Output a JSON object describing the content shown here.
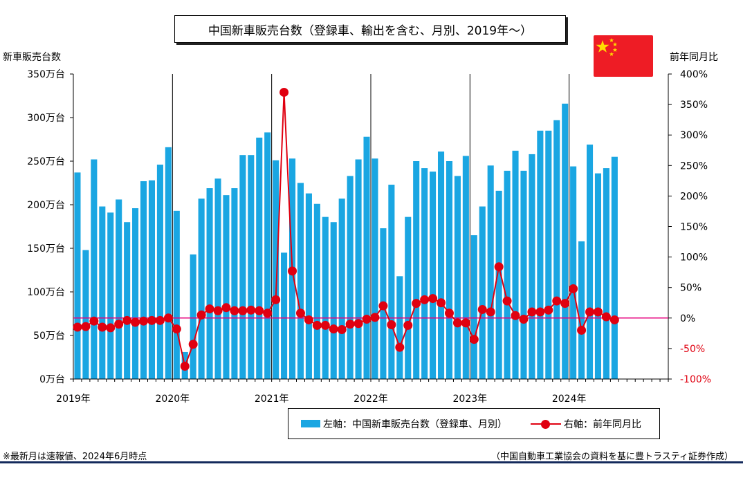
{
  "title": "中国新車販売台数（登録車、輸出を含む、月別、2019年～）",
  "flag": {
    "label": "China flag",
    "colors": {
      "red": "#ee1c25",
      "star": "#ffde00"
    }
  },
  "axes": {
    "left_title": "新車販売台数",
    "right_title": "前年同月比"
  },
  "legend": {
    "bar_label": "左軸：中国新車販売台数（登録車、月別）",
    "line_label": "右軸：前年同月比"
  },
  "note": "※最新月は速報値、2024年6月時点",
  "source": "（中国自動車工業協会の資料を基に豊トラスティ証券作成）",
  "colors": {
    "bar": "#1aa6e2",
    "line": "#e00010",
    "zero_line": "#e6007e"
  },
  "chart_data": {
    "type": "bar",
    "combo": "bar + line (dual axis)",
    "grid": false,
    "legend_position": "bottom",
    "left_axis": {
      "ylim": [
        0,
        350
      ],
      "unit": "万台",
      "tick_labels": [
        "0万台",
        "50万台",
        "100万台",
        "150万台",
        "200万台",
        "250万台",
        "300万台",
        "350万台"
      ]
    },
    "right_axis": {
      "ylim": [
        -100,
        400
      ],
      "unit": "%",
      "tick_labels": [
        "-100%",
        "-50%",
        "0%",
        "50%",
        "100%",
        "150%",
        "200%",
        "250%",
        "300%",
        "350%",
        "400%"
      ]
    },
    "x_year_labels": [
      "2019年",
      "2020年",
      "2021年",
      "2022年",
      "2023年",
      "2024年"
    ],
    "x_start": "2019-01",
    "months_per_year": 12,
    "series": [
      {
        "name": "中国新車販売台数（登録車、月別）",
        "axis": "left",
        "type": "bar",
        "values": [
          237,
          148,
          252,
          198,
          191,
          206,
          180,
          196,
          227,
          228,
          246,
          266,
          193,
          31,
          143,
          207,
          219,
          230,
          211,
          219,
          257,
          257,
          277,
          283,
          251,
          145,
          253,
          225,
          213,
          201,
          186,
          180,
          207,
          233,
          252,
          278,
          253,
          173,
          223,
          118,
          186,
          250,
          242,
          238,
          261,
          250,
          233,
          256,
          165,
          198,
          245,
          216,
          239,
          262,
          239,
          258,
          285,
          285,
          297,
          316,
          244,
          158,
          269,
          236,
          242,
          255
        ]
      },
      {
        "name": "前年同月比",
        "axis": "right",
        "type": "line",
        "values": [
          -15,
          -14,
          -5,
          -15,
          -16,
          -10,
          -4,
          -7,
          -5,
          -4,
          -4,
          0,
          -18,
          -79,
          -43,
          5,
          15,
          12,
          17,
          12,
          12,
          13,
          12,
          8,
          30,
          370,
          77,
          8,
          -3,
          -12,
          -12,
          -18,
          -19,
          -10,
          -9,
          -2,
          1,
          20,
          -11,
          -48,
          -12,
          24,
          30,
          32,
          25,
          8,
          -8,
          -8,
          -35,
          14,
          10,
          84,
          28,
          4,
          -2,
          10,
          10,
          13,
          28,
          24,
          48,
          -20,
          10,
          10,
          2,
          -3
        ]
      }
    ]
  }
}
